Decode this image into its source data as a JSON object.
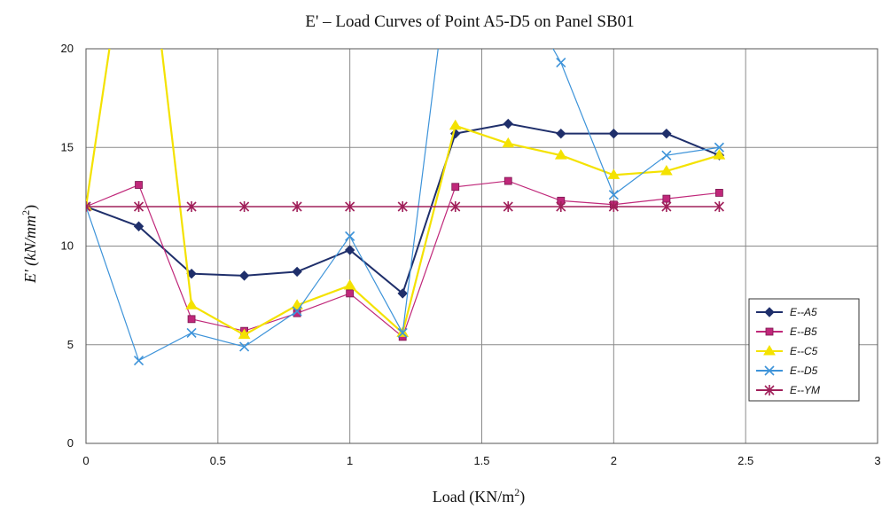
{
  "chart_data": {
    "type": "line",
    "title": "E' – Load Curves of Point A5-D5 on Panel SB01",
    "xlabel": "Load (KN/m",
    "xlabel_sup": "2",
    "xlabel_end": ")",
    "ylabel_main": "E' (kN/mm",
    "ylabel_sup": "2",
    "ylabel_end": ")",
    "xlim": [
      0,
      3
    ],
    "ylim": [
      0,
      20
    ],
    "xticks": [
      "0",
      "0.5",
      "1",
      "1.5",
      "2",
      "2.5",
      "3"
    ],
    "yticks": [
      "0",
      "5",
      "10",
      "15",
      "20"
    ],
    "grid": true,
    "legend_position": "right",
    "series": [
      {
        "name": "E--A5",
        "color": "#1f2f6b",
        "marker": "diamond",
        "x": [
          0,
          0.2,
          0.4,
          0.6,
          0.8,
          1.0,
          1.2,
          1.4,
          1.6,
          1.8,
          2.0,
          2.2,
          2.4
        ],
        "y": [
          12,
          11,
          8.6,
          8.5,
          8.7,
          9.8,
          7.6,
          15.7,
          16.2,
          15.7,
          15.7,
          15.7,
          14.6
        ]
      },
      {
        "name": "E--B5",
        "color": "#c0287a",
        "marker": "square",
        "x": [
          0,
          0.2,
          0.4,
          0.6,
          0.8,
          1.0,
          1.2,
          1.4,
          1.6,
          1.8,
          2.0,
          2.2,
          2.4
        ],
        "y": [
          12,
          13.1,
          6.3,
          5.7,
          6.6,
          7.6,
          5.4,
          13.0,
          13.3,
          12.3,
          12.1,
          12.4,
          12.7
        ]
      },
      {
        "name": "E--C5",
        "color": "#f4e200",
        "marker": "triangle",
        "x": [
          0,
          0.2,
          0.4,
          0.6,
          0.8,
          1.0,
          1.2,
          1.4,
          1.6,
          1.8,
          2.0,
          2.2,
          2.4
        ],
        "y": [
          12,
          30,
          7.0,
          5.5,
          7.0,
          8.0,
          5.6,
          16.1,
          15.2,
          14.6,
          13.6,
          13.8,
          14.6
        ]
      },
      {
        "name": "E--D5",
        "color": "#3d93d9",
        "marker": "x",
        "x": [
          0,
          0.2,
          0.4,
          0.6,
          0.8,
          1.0,
          1.2,
          1.4,
          1.6,
          1.8,
          2.0,
          2.2,
          2.4
        ],
        "y": [
          12,
          4.2,
          5.6,
          4.9,
          6.7,
          10.5,
          5.6,
          27,
          24,
          19.3,
          12.6,
          14.6,
          15.0
        ]
      },
      {
        "name": "E--YM",
        "color": "#a0205a",
        "marker": "star",
        "x": [
          0,
          0.2,
          0.4,
          0.6,
          0.8,
          1.0,
          1.2,
          1.4,
          1.6,
          1.8,
          2.0,
          2.2,
          2.4
        ],
        "y": [
          12,
          12,
          12,
          12,
          12,
          12,
          12,
          12,
          12,
          12,
          12,
          12,
          12
        ]
      }
    ]
  }
}
